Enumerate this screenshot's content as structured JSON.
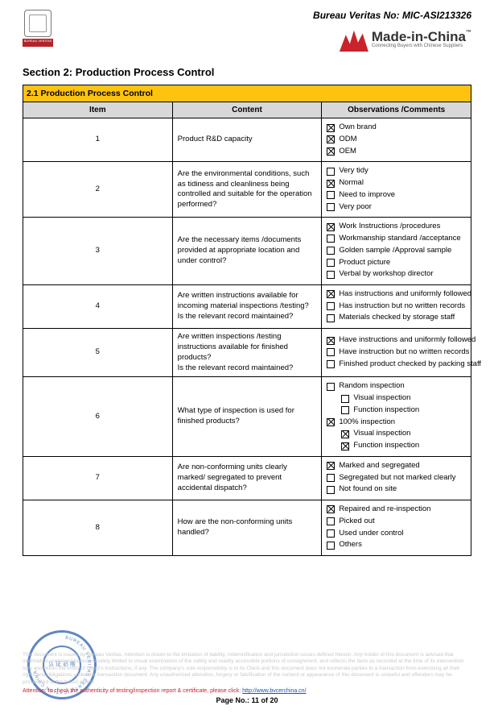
{
  "header": {
    "bv_number": "Bureau Veritas No: MIC-ASI213326",
    "bv_band": "BUREAU VERITAS",
    "mic_main": "Made-in-China",
    "mic_sub": "Connecting Buyers with Chinese Suppliers"
  },
  "section_title": "Section 2: Production Process Control",
  "band_title": "2.1 Production Process Control",
  "columns": {
    "item": "Item",
    "content": "Content",
    "obs": "Observations /Comments"
  },
  "rows": [
    {
      "item": "1",
      "content": "Product R&D capacity",
      "checks": [
        {
          "checked": true,
          "label": "Own brand",
          "indent": false
        },
        {
          "checked": true,
          "label": "ODM",
          "indent": false
        },
        {
          "checked": true,
          "label": "OEM",
          "indent": false
        }
      ]
    },
    {
      "item": "2",
      "content": "Are the environmental conditions, such as tidiness and cleanliness being controlled and suitable for the operation performed?",
      "checks": [
        {
          "checked": false,
          "label": "Very tidy",
          "indent": false
        },
        {
          "checked": true,
          "label": "Normal",
          "indent": false
        },
        {
          "checked": false,
          "label": "Need to improve",
          "indent": false
        },
        {
          "checked": false,
          "label": "Very poor",
          "indent": false
        }
      ]
    },
    {
      "item": "3",
      "content": "Are the necessary items /documents provided at appropriate location and under control?",
      "checks": [
        {
          "checked": true,
          "label": "Work Instructions /procedures",
          "indent": false
        },
        {
          "checked": false,
          "label": "Workmanship standard /acceptance",
          "indent": false
        },
        {
          "checked": false,
          "label": "Golden sample /Approval sample",
          "indent": false
        },
        {
          "checked": false,
          "label": "Product picture",
          "indent": false
        },
        {
          "checked": false,
          "label": "Verbal by workshop director",
          "indent": false
        }
      ]
    },
    {
      "item": "4",
      "content": "Are written instructions available for incoming material inspections /testing?\nIs the relevant record maintained?",
      "checks": [
        {
          "checked": true,
          "label": "Has instructions and uniformly followed",
          "indent": false
        },
        {
          "checked": false,
          "label": "Has instruction but no written records",
          "indent": false
        },
        {
          "checked": false,
          "label": "Materials checked by storage staff",
          "indent": false
        }
      ]
    },
    {
      "item": "5",
      "content": "Are written inspections /testing instructions available for finished products?\nIs the relevant record maintained?",
      "checks": [
        {
          "checked": true,
          "label": "Have instructions and uniformly followed",
          "indent": false
        },
        {
          "checked": false,
          "label": "Have instruction but no written records",
          "indent": false
        },
        {
          "checked": false,
          "label": "Finished product checked by packing staff",
          "indent": false
        }
      ]
    },
    {
      "item": "6",
      "content": "What type of inspection is used for finished products?",
      "checks": [
        {
          "checked": false,
          "label": "Random inspection",
          "indent": false
        },
        {
          "checked": false,
          "label": "Visual inspection",
          "indent": true
        },
        {
          "checked": false,
          "label": "Function inspection",
          "indent": true
        },
        {
          "checked": true,
          "label": "100% inspection",
          "indent": false
        },
        {
          "checked": true,
          "label": "Visual inspection",
          "indent": true
        },
        {
          "checked": true,
          "label": "Function inspection",
          "indent": true
        }
      ]
    },
    {
      "item": "7",
      "content": "Are non-conforming units clearly marked/ segregated to prevent accidental dispatch?",
      "checks": [
        {
          "checked": true,
          "label": "Marked and segregated",
          "indent": false
        },
        {
          "checked": false,
          "label": "Segregated but not marked clearly",
          "indent": false
        },
        {
          "checked": false,
          "label": "Not found on site",
          "indent": false
        }
      ]
    },
    {
      "item": "8",
      "content": "How are the non-conforming units handled?",
      "checks": [
        {
          "checked": true,
          "label": "Repaired and re-inspection",
          "indent": false
        },
        {
          "checked": false,
          "label": "Picked out",
          "indent": false
        },
        {
          "checked": false,
          "label": "Used under control",
          "indent": false
        },
        {
          "checked": false,
          "label": "Others",
          "indent": false
        }
      ]
    }
  ],
  "footer": {
    "disclaimer": "This document is issued by Bureau Veritas. Attention is drawn to the limitation of liability, indemnification and jurisdiction issues defined therein. Any holder of this document is advised that information contained hereon is solely limited to visual examination of the safely and readily accessible portions of consignment, and reflects the facts as recorded at the time of its intervention only and within the limits of Client's instructions, if any. The company's sole responsibility is to its Client and this document does not exonerate parties to a transaction from exercising all their rights and obligations under the transaction document. Any unauthorized alteration, forgery or falsification of the content or appearance of this document is unlawful and offenders may be prosecuted to the fullest extent",
    "auth_prefix": "Attention: to check the authenticity of testing/inspection report & certificate, please click: ",
    "auth_link": "http://www.bvcerchina.cn/",
    "page": "Page No.: 11 of 20"
  },
  "stamp": {
    "ring": "BUREAU VERITAS CERTIFICATION CHINA",
    "center": "认 证\n必 维"
  },
  "colors": {
    "band": "#ffc20e",
    "header_bg": "#d8d8d8",
    "brand_red": "#c9242b",
    "stamp_blue": "#2a5fae",
    "disclaimer_grey": "#c9c9c9"
  }
}
